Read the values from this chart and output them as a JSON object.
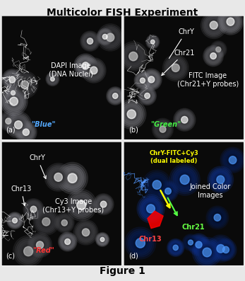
{
  "title": "Multicolor FISH Experiment",
  "caption": "Figure 1",
  "title_fontsize": 10,
  "caption_fontsize": 10,
  "panel_labels": [
    "(a)",
    "(b)",
    "(c)",
    "(d)"
  ],
  "panel_label_color": "white",
  "panel_label_fontsize": 7,
  "panel_a": {
    "main_text": "DAPI Image\n(DNA Nuclei)",
    "main_text_color": "white",
    "main_text_fontsize": 7,
    "annotation": "\"Blue\"",
    "annotation_color": "#55aaff",
    "annotation_fontsize": 7,
    "bg_color": "#111111"
  },
  "panel_b": {
    "main_text": "FITC Image\n(Chr21+Y probes)",
    "main_text_color": "white",
    "main_text_fontsize": 7,
    "annotation": "\"Green\"",
    "annotation_color": "#44ee44",
    "annotation_fontsize": 7,
    "bg_color": "#111111",
    "chry_label": "ChrY",
    "chr21_label": "Chr21"
  },
  "panel_c": {
    "main_text": "Cy3 Image\n(Chr13+Y probes)",
    "main_text_color": "white",
    "main_text_fontsize": 7,
    "annotation": "\"Red\"",
    "annotation_color": "#ff3333",
    "annotation_fontsize": 7,
    "bg_color": "#111111",
    "chry_label": "ChrY",
    "chr13_label": "Chr13"
  },
  "panel_d": {
    "main_text": "Joined Color\nImages",
    "main_text_color": "white",
    "main_text_fontsize": 7,
    "bg_color": "#050515",
    "label_chry": "ChrY-FITC+Cy3\n(dual labeled)",
    "label_chry_color": "#ffff00",
    "label_chry_fontsize": 6,
    "label_chr13": "Chr13",
    "label_chr13_color": "#ff4444",
    "label_chr13_fontsize": 7,
    "label_chr21": "Chr21",
    "label_chr21_color": "#66ff44",
    "label_chr21_fontsize": 7
  },
  "border_color": "white",
  "border_lw": 0.5,
  "figure_bg": "#e8e8e8"
}
